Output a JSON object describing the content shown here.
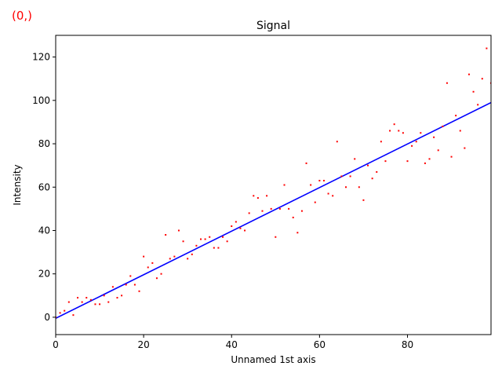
{
  "corner_label": "(0,)",
  "colors": {
    "points": "#ff0000",
    "fit_line": "#0000ff",
    "corner_label": "#ff0000"
  },
  "chart_data": {
    "type": "scatter",
    "title": "Signal",
    "xlabel": "Unnamed 1st axis",
    "ylabel": "Intensity",
    "xlim": [
      0,
      99
    ],
    "ylim": [
      -8,
      130
    ],
    "xticks": [
      0,
      20,
      40,
      60,
      80
    ],
    "yticks": [
      0,
      20,
      40,
      60,
      80,
      100,
      120
    ],
    "grid": false,
    "legend": "none",
    "series": [
      {
        "kind": "points",
        "x": [
          0,
          1,
          2,
          3,
          4,
          5,
          6,
          7,
          8,
          9,
          10,
          11,
          12,
          13,
          14,
          15,
          16,
          17,
          18,
          19,
          20,
          21,
          22,
          23,
          24,
          25,
          26,
          27,
          28,
          29,
          30,
          31,
          32,
          33,
          34,
          35,
          36,
          37,
          38,
          39,
          40,
          41,
          42,
          43,
          44,
          45,
          46,
          47,
          48,
          49,
          50,
          51,
          52,
          53,
          54,
          55,
          56,
          57,
          58,
          59,
          60,
          61,
          62,
          63,
          64,
          65,
          66,
          67,
          68,
          69,
          70,
          71,
          72,
          73,
          74,
          75,
          76,
          77,
          78,
          79,
          80,
          81,
          82,
          83,
          84,
          85,
          86,
          87,
          88,
          89,
          90,
          91,
          92,
          93,
          94,
          95,
          96,
          97,
          98,
          99
        ],
        "y": [
          0,
          2,
          3,
          7,
          1,
          9,
          7,
          9,
          8,
          6,
          6,
          10,
          7,
          14,
          9,
          10,
          15,
          19,
          15,
          12,
          28,
          23,
          25,
          18,
          20,
          38,
          27,
          28,
          40,
          35,
          27,
          29,
          33,
          36,
          36,
          37,
          32,
          32,
          37,
          35,
          42,
          44,
          41,
          40,
          48,
          56,
          55,
          49,
          56,
          50,
          37,
          50,
          61,
          50,
          46,
          39,
          49,
          71,
          61,
          53,
          63,
          63,
          57,
          56,
          81,
          65,
          60,
          65,
          73,
          60,
          54,
          70,
          64,
          67,
          81,
          72,
          86,
          89,
          86,
          85,
          72,
          79,
          81,
          85,
          71,
          73,
          83,
          77,
          88,
          108,
          74,
          93,
          86,
          78,
          112,
          104,
          98,
          110,
          124,
          108
        ]
      },
      {
        "kind": "line",
        "x": [
          0,
          99
        ],
        "y": [
          -0.5,
          99
        ]
      }
    ]
  }
}
